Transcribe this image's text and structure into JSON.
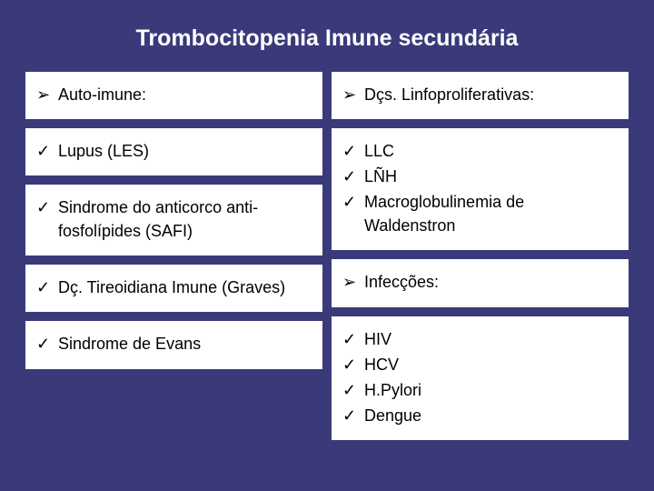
{
  "title": "Trombocitopenia Imune secundária",
  "left": {
    "box1": {
      "items": [
        {
          "bullet": "arrow",
          "text": "Auto-imune:"
        }
      ]
    },
    "box2": {
      "items": [
        {
          "bullet": "check",
          "text": "Lupus (LES)"
        }
      ]
    },
    "box3": {
      "items": [
        {
          "bullet": "check",
          "text": "Sindrome do anticorco anti-fosfolípides (SAFI)"
        }
      ]
    },
    "box4": {
      "items": [
        {
          "bullet": "check",
          "text": "Dç. Tireoidiana Imune (Graves)"
        }
      ]
    },
    "box5": {
      "items": [
        {
          "bullet": "check",
          "text": "Sindrome de Evans"
        }
      ]
    }
  },
  "right": {
    "box1": {
      "items": [
        {
          "bullet": "arrow",
          "text": "Dçs. Linfoproliferativas:"
        }
      ]
    },
    "box2": {
      "items": [
        {
          "bullet": "check",
          "text": "LLC"
        },
        {
          "bullet": "check",
          "text": "LÑH"
        },
        {
          "bullet": "check",
          "text": "Macroglobulinemia de Waldenstron"
        }
      ]
    },
    "box3": {
      "items": [
        {
          "bullet": "arrow",
          "text": "Infecções:"
        }
      ]
    },
    "box4": {
      "items": [
        {
          "bullet": "check",
          "text": "HIV"
        },
        {
          "bullet": "check",
          "text": "HCV"
        },
        {
          "bullet": "check",
          "text": "H.Pylori"
        },
        {
          "bullet": "check",
          "text": "Dengue"
        }
      ]
    }
  }
}
